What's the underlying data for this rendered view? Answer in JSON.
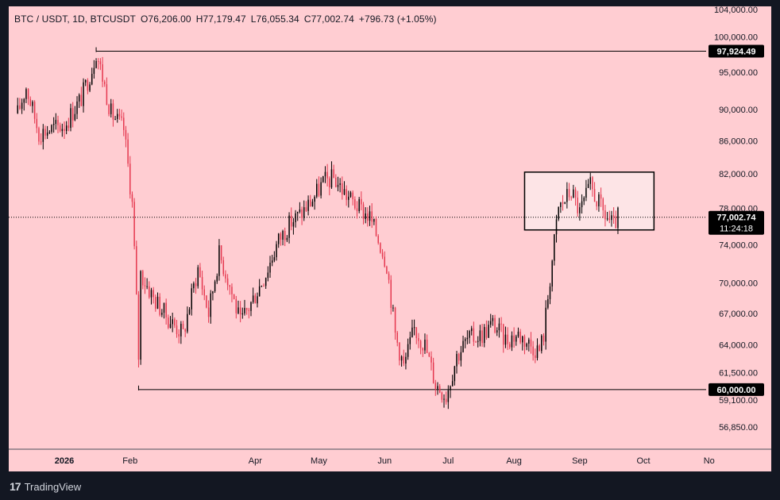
{
  "header": {
    "symbol": "BTC / USDT, 1D, BTCUSDT",
    "open": "O76,206.00",
    "high": "H77,179.47",
    "low": "L76,055.34",
    "close": "C77,002.74",
    "change": "+796.73 (+1.05%)"
  },
  "footer": {
    "logo": "17",
    "brand": "TradingView"
  },
  "colors": {
    "background": "#ffcdd2",
    "frame": "#131722",
    "up": "#000000",
    "down": "#e53950",
    "level_line": "#000000",
    "box_fill": "#fde4e6"
  },
  "chart_data": {
    "type": "candlestick",
    "x_ticks": [
      "2026",
      "Feb",
      "Apr",
      "May",
      "Jun",
      "Jul",
      "Aug",
      "Sep",
      "Oct",
      "No"
    ],
    "y_ticks": [
      "104,000.00",
      "100,000.00",
      "95,000.00",
      "90,000.00",
      "86,000.00",
      "82,000.00",
      "78,000.00",
      "74,000.00",
      "70,000.00",
      "67,000.00",
      "64,000.00",
      "61,500.00",
      "59,100.00",
      "56,850.00"
    ],
    "y_scale": "log",
    "ylim": [
      55800,
      104500
    ],
    "horizontal_levels": [
      {
        "value": 97924.49,
        "label": "97,924.49",
        "from": "2026-01-16"
      },
      {
        "value": 60000.0,
        "label": "60,000.00",
        "from": "2026-02-05"
      }
    ],
    "box": {
      "from": "2026-08-06",
      "to": "2026-10-06",
      "top": 82200,
      "bottom": 75600
    },
    "last_price": {
      "value": 77002.74,
      "label": "77,002.74",
      "countdown": "11:24:18"
    },
    "price_anchors": [
      [
        "2025-12-10",
        89500
      ],
      [
        "2025-12-14",
        93000
      ],
      [
        "2025-12-20",
        87000
      ],
      [
        "2025-12-26",
        87500
      ],
      [
        "2026-01-01",
        88000
      ],
      [
        "2026-01-09",
        91500
      ],
      [
        "2026-01-14",
        95500
      ],
      [
        "2026-01-16",
        97900
      ],
      [
        "2026-01-23",
        89500
      ],
      [
        "2026-01-29",
        87500
      ],
      [
        "2026-02-02",
        78500
      ],
      [
        "2026-02-05",
        63000
      ],
      [
        "2026-02-06",
        71000
      ],
      [
        "2026-02-12",
        68500
      ],
      [
        "2026-02-19",
        66500
      ],
      [
        "2026-02-26",
        65000
      ],
      [
        "2026-03-05",
        71500
      ],
      [
        "2026-03-10",
        67000
      ],
      [
        "2026-03-15",
        73000
      ],
      [
        "2026-03-19",
        70500
      ],
      [
        "2026-03-25",
        66000
      ],
      [
        "2026-03-30",
        68000
      ],
      [
        "2026-04-06",
        71000
      ],
      [
        "2026-04-12",
        74500
      ],
      [
        "2026-04-18",
        76500
      ],
      [
        "2026-04-23",
        77500
      ],
      [
        "2026-04-28",
        79000
      ],
      [
        "2026-05-03",
        81000
      ],
      [
        "2026-05-08",
        81500
      ],
      [
        "2026-05-14",
        79500
      ],
      [
        "2026-05-20",
        78000
      ],
      [
        "2026-05-25",
        77000
      ],
      [
        "2026-05-30",
        74000
      ],
      [
        "2026-06-02",
        72000
      ],
      [
        "2026-06-06",
        65000
      ],
      [
        "2026-06-10",
        62000
      ],
      [
        "2026-06-15",
        65500
      ],
      [
        "2026-06-20",
        64000
      ],
      [
        "2026-06-25",
        60500
      ],
      [
        "2026-06-30",
        59500
      ],
      [
        "2026-07-05",
        63000
      ],
      [
        "2026-07-10",
        64500
      ],
      [
        "2026-07-17",
        65000
      ],
      [
        "2026-07-22",
        66000
      ],
      [
        "2026-07-28",
        64500
      ],
      [
        "2026-08-03",
        65000
      ],
      [
        "2026-08-09",
        64000
      ],
      [
        "2026-08-13",
        63500
      ],
      [
        "2026-08-15",
        65000
      ],
      [
        "2026-08-18",
        70500
      ],
      [
        "2026-08-22",
        78000
      ],
      [
        "2026-08-28",
        80000
      ],
      [
        "2026-09-01",
        77500
      ],
      [
        "2026-09-06",
        80500
      ],
      [
        "2026-09-12",
        77500
      ],
      [
        "2026-09-17",
        76000
      ],
      [
        "2026-09-19",
        77000
      ]
    ]
  }
}
